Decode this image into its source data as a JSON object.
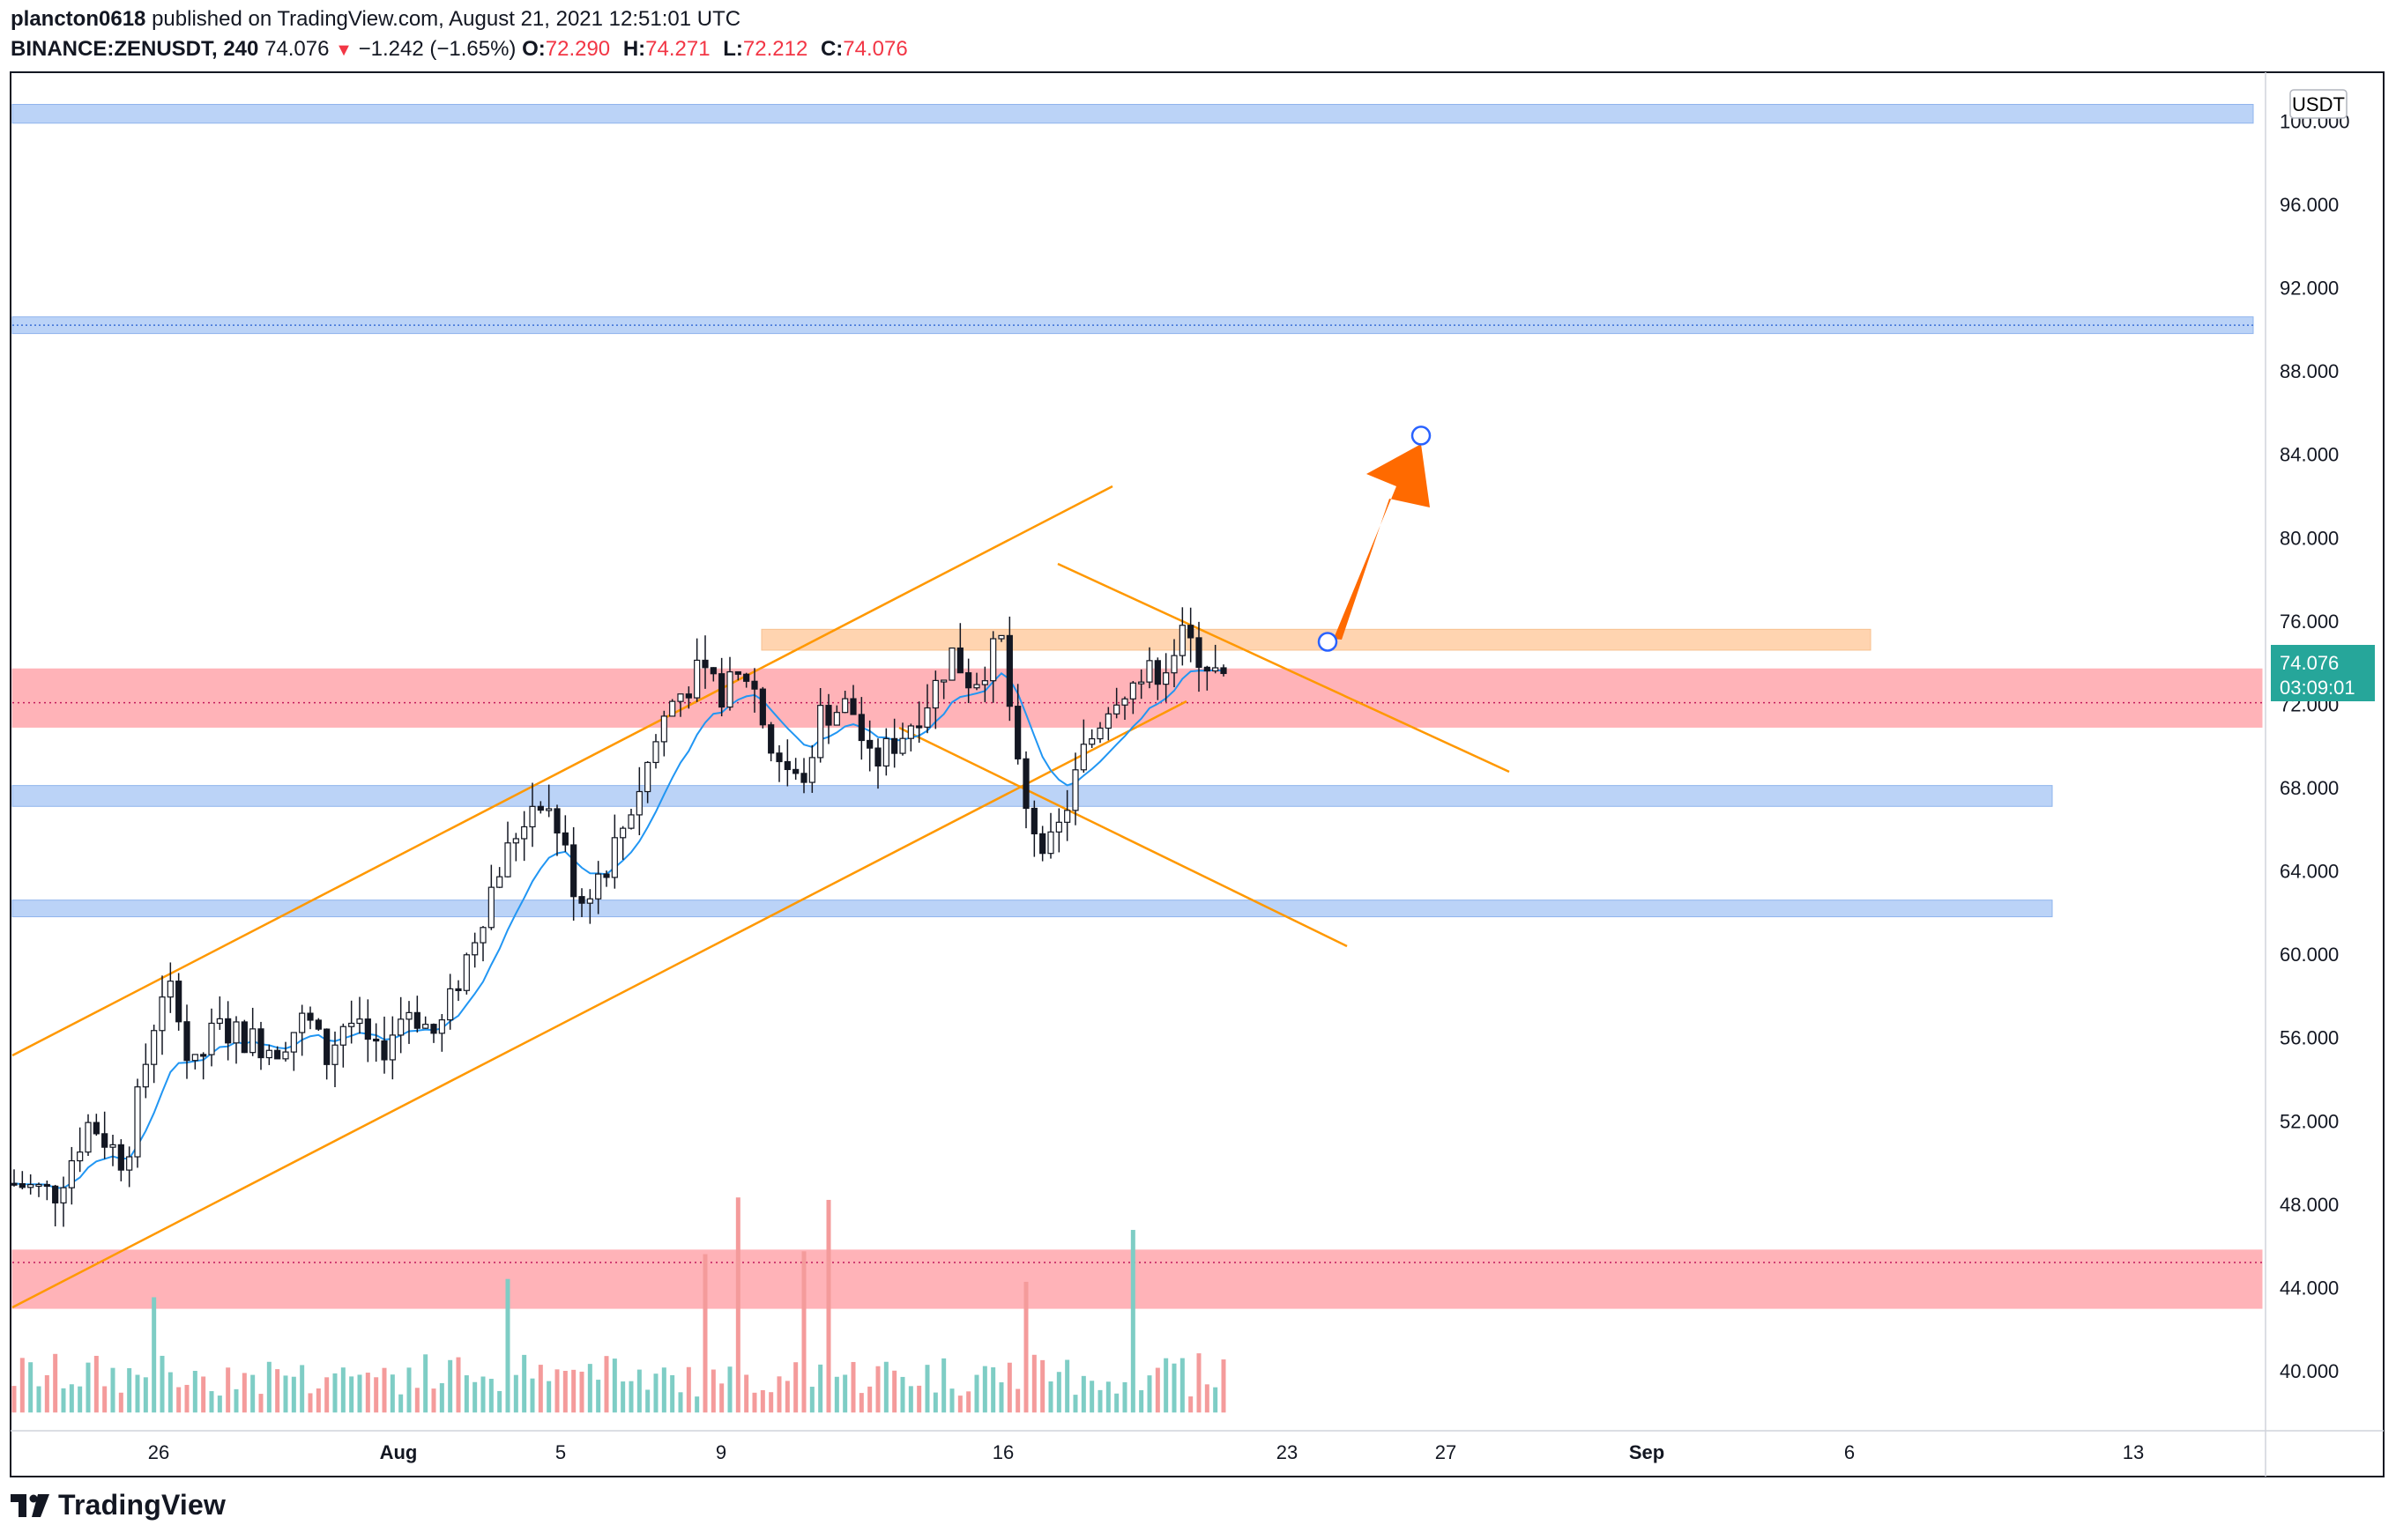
{
  "header": {
    "author": "plancton0618",
    "published": "published on TradingView.com, August 21, 2021 12:51:01 UTC",
    "symbol": "BINANCE:ZENUSDT, 240",
    "last": "74.076",
    "change": "−1.242 (−1.65%)",
    "o_label": "O:",
    "o": "72.290",
    "h_label": "H:",
    "h": "74.271",
    "l_label": "L:",
    "l": "72.212",
    "c_label": "C:",
    "c": "74.076"
  },
  "price_axis": {
    "currency": "USDT",
    "last_price_label": "74.076",
    "countdown": "03:09:01"
  },
  "footer": {
    "brand": "TradingView"
  },
  "colors": {
    "up": "#131722",
    "down": "#131722",
    "ema": "#2196f3",
    "channel": "#ff9800",
    "blue_zone": "#bbd3f7",
    "red_zone": "#ffb3b8",
    "orange_zone": "#ffd4b0",
    "target_arrow": "#ff6a00",
    "vol_up": "#7ecdc5",
    "vol_down": "#f49b9b",
    "last_price_bg": "#26a69a"
  },
  "chart_data": {
    "type": "candlestick",
    "y_ticks": [
      "100.000",
      "96.000",
      "92.000",
      "88.000",
      "84.000",
      "80.000",
      "76.000",
      "72.000",
      "68.000",
      "64.000",
      "60.000",
      "56.000",
      "52.000",
      "48.000",
      "44.000",
      "40.000"
    ],
    "x_ticks": [
      "26",
      "Aug",
      "5",
      "9",
      "16",
      "23",
      "27",
      "Sep",
      "6",
      "13"
    ],
    "ylim": [
      37.5,
      102
    ],
    "zones": [
      {
        "kind": "support-resistance",
        "color": "blue",
        "low": 99.9,
        "high": 100.8
      },
      {
        "kind": "support-resistance",
        "color": "blue",
        "low": 89.8,
        "high": 90.6
      },
      {
        "kind": "support-resistance",
        "color": "orange",
        "low": 74.6,
        "high": 75.6
      },
      {
        "kind": "support-resistance",
        "color": "red",
        "low": 70.9,
        "high": 73.7
      },
      {
        "kind": "support-resistance",
        "color": "blue",
        "low": 67.1,
        "high": 68.1
      },
      {
        "kind": "support-resistance",
        "color": "blue",
        "low": 61.8,
        "high": 62.6
      },
      {
        "kind": "support-resistance",
        "color": "red",
        "low": 43.0,
        "high": 45.8
      }
    ],
    "last_price": 74.076,
    "target": {
      "from": 75.0,
      "to": 84.9
    }
  }
}
